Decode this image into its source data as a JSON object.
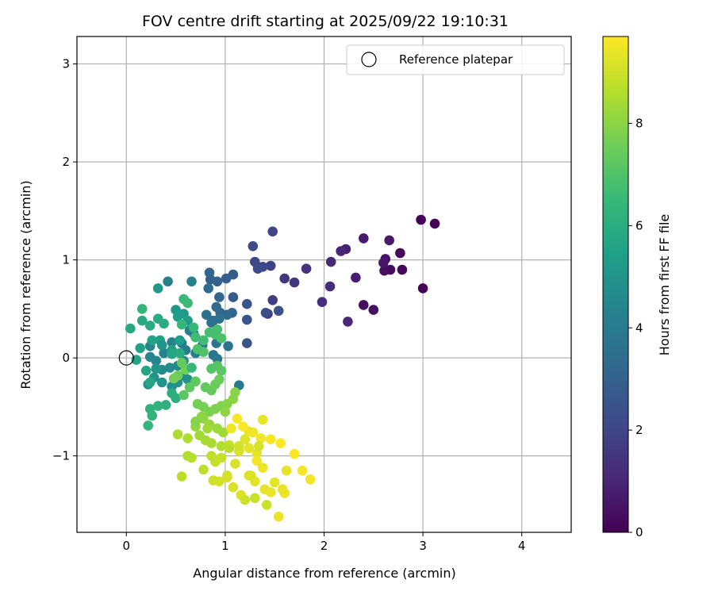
{
  "chart_data": {
    "type": "scatter",
    "title": "FOV centre drift starting at 2025/09/22 19:10:31",
    "xlabel": "Angular distance from reference (arcmin)",
    "ylabel": "Rotation from reference (arcmin)",
    "xlim": [
      -0.5,
      4.5
    ],
    "ylim": [
      -1.78,
      3.28
    ],
    "xticks": [
      0,
      1,
      2,
      3,
      4
    ],
    "yticks": [
      -1,
      0,
      1,
      2,
      3
    ],
    "xtick_labels": [
      "0",
      "1",
      "2",
      "3",
      "4"
    ],
    "ytick_labels": [
      "−1",
      "0",
      "1",
      "2",
      "3"
    ],
    "grid": true,
    "legend": {
      "position": "top-right",
      "entries": [
        {
          "label": "Reference platepar",
          "marker": "open-circle"
        }
      ]
    },
    "reference_point": {
      "x": 0,
      "y": 0
    },
    "colorbar": {
      "label": "Hours from first FF file",
      "colormap": "viridis",
      "range": [
        0,
        9.7
      ],
      "ticks": [
        0,
        2,
        4,
        6,
        8
      ],
      "tick_labels": [
        "0",
        "2",
        "4",
        "6",
        "8"
      ]
    },
    "points_format": [
      "x",
      "y",
      "hours"
    ],
    "points": [
      [
        2.98,
        1.41,
        0.05
      ],
      [
        3.12,
        1.37,
        0.1
      ],
      [
        3.0,
        0.71,
        0.15
      ],
      [
        2.79,
        0.9,
        0.2
      ],
      [
        2.77,
        1.07,
        0.25
      ],
      [
        2.67,
        0.9,
        0.3
      ],
      [
        2.61,
        0.89,
        0.35
      ],
      [
        2.4,
        0.54,
        0.4
      ],
      [
        2.5,
        0.49,
        0.45
      ],
      [
        2.62,
        1.01,
        0.5
      ],
      [
        2.6,
        0.97,
        0.6
      ],
      [
        2.66,
        1.2,
        0.65
      ],
      [
        2.4,
        1.22,
        0.7
      ],
      [
        2.32,
        0.82,
        0.8
      ],
      [
        2.22,
        1.11,
        0.9
      ],
      [
        2.17,
        1.09,
        1.0
      ],
      [
        2.24,
        0.37,
        1.05
      ],
      [
        2.07,
        0.98,
        1.1
      ],
      [
        2.06,
        0.73,
        1.2
      ],
      [
        1.98,
        0.57,
        1.3
      ],
      [
        1.82,
        0.91,
        1.4
      ],
      [
        1.7,
        0.77,
        1.5
      ],
      [
        1.6,
        0.81,
        1.6
      ],
      [
        1.48,
        0.59,
        1.7
      ],
      [
        1.43,
        0.45,
        1.8
      ],
      [
        1.46,
        0.94,
        1.9
      ],
      [
        1.48,
        1.29,
        2.0
      ],
      [
        1.38,
        0.93,
        2.05
      ],
      [
        1.3,
        0.98,
        2.1
      ],
      [
        1.28,
        1.14,
        2.2
      ],
      [
        1.33,
        0.91,
        2.25
      ],
      [
        1.41,
        0.46,
        2.3
      ],
      [
        1.54,
        0.48,
        2.4
      ],
      [
        1.22,
        0.55,
        2.5
      ],
      [
        1.22,
        0.39,
        2.55
      ],
      [
        1.22,
        0.15,
        2.6
      ],
      [
        1.08,
        0.62,
        2.7
      ],
      [
        1.08,
        0.85,
        2.8
      ],
      [
        1.01,
        0.81,
        2.9
      ],
      [
        0.92,
        0.78,
        3.0
      ],
      [
        0.85,
        0.8,
        3.05
      ],
      [
        0.84,
        0.87,
        3.1
      ],
      [
        0.94,
        0.62,
        3.15
      ],
      [
        0.95,
        0.46,
        3.2
      ],
      [
        1.02,
        0.44,
        3.25
      ],
      [
        1.07,
        0.46,
        3.3
      ],
      [
        0.91,
        0.52,
        3.35
      ],
      [
        0.88,
        0.38,
        3.4
      ],
      [
        0.83,
        0.71,
        3.45
      ],
      [
        0.81,
        0.44,
        3.5
      ],
      [
        0.86,
        0.36,
        3.55
      ],
      [
        0.94,
        0.4,
        3.6
      ],
      [
        1.03,
        0.12,
        3.65
      ],
      [
        0.91,
        0.15,
        3.7
      ],
      [
        0.88,
        0.03,
        3.75
      ],
      [
        0.77,
        0.13,
        3.8
      ],
      [
        0.92,
        -0.01,
        3.85
      ],
      [
        1.14,
        -0.28,
        3.9
      ],
      [
        0.68,
        0.25,
        3.95
      ],
      [
        0.56,
        0.15,
        4.0
      ],
      [
        0.6,
        0.08,
        4.05
      ],
      [
        0.7,
        0.05,
        4.1
      ],
      [
        0.64,
        0.28,
        4.15
      ],
      [
        0.42,
        0.78,
        4.2
      ],
      [
        0.66,
        0.78,
        4.25
      ],
      [
        0.38,
        0.05,
        4.3
      ],
      [
        0.46,
        0.16,
        4.35
      ],
      [
        0.24,
        0.12,
        4.4
      ],
      [
        0.24,
        0.01,
        4.45
      ],
      [
        0.3,
        -0.03,
        4.5
      ],
      [
        0.36,
        -0.12,
        4.55
      ],
      [
        0.44,
        -0.1,
        4.6
      ],
      [
        0.52,
        -0.08,
        4.65
      ],
      [
        0.58,
        -0.03,
        4.7
      ],
      [
        0.58,
        -0.18,
        4.75
      ],
      [
        0.62,
        -0.22,
        4.8
      ],
      [
        0.52,
        -0.25,
        4.85
      ],
      [
        0.46,
        -0.29,
        4.9
      ],
      [
        0.36,
        -0.25,
        4.95
      ],
      [
        0.28,
        -0.2,
        5.0
      ],
      [
        0.22,
        -0.27,
        5.05
      ],
      [
        0.3,
        -0.11,
        5.1
      ],
      [
        0.32,
        0.71,
        5.15
      ],
      [
        0.5,
        0.49,
        5.2
      ],
      [
        0.58,
        0.45,
        5.25
      ],
      [
        0.62,
        0.38,
        5.3
      ],
      [
        0.52,
        0.42,
        5.35
      ],
      [
        0.54,
        0.18,
        5.4
      ],
      [
        0.46,
        0.08,
        5.45
      ],
      [
        0.34,
        0.18,
        5.5
      ],
      [
        0.26,
        0.18,
        5.55
      ],
      [
        0.14,
        0.1,
        5.6
      ],
      [
        0.1,
        -0.02,
        5.65
      ],
      [
        0.2,
        -0.13,
        5.7
      ],
      [
        0.24,
        -0.25,
        5.75
      ],
      [
        0.04,
        0.3,
        5.8
      ],
      [
        0.16,
        0.38,
        5.85
      ],
      [
        0.24,
        0.33,
        5.9
      ],
      [
        0.32,
        0.4,
        5.95
      ],
      [
        0.38,
        0.35,
        6.0
      ],
      [
        0.46,
        -0.36,
        6.05
      ],
      [
        0.5,
        -0.41,
        6.1
      ],
      [
        0.4,
        -0.48,
        6.15
      ],
      [
        0.32,
        -0.49,
        6.2
      ],
      [
        0.24,
        -0.52,
        6.25
      ],
      [
        0.26,
        -0.59,
        6.3
      ],
      [
        0.22,
        -0.69,
        6.35
      ],
      [
        0.16,
        0.5,
        6.4
      ],
      [
        0.56,
        0.34,
        6.45
      ],
      [
        0.68,
        0.31,
        6.5
      ],
      [
        0.58,
        0.6,
        6.55
      ],
      [
        0.62,
        0.56,
        6.6
      ],
      [
        0.7,
        0.21,
        6.65
      ],
      [
        0.78,
        0.18,
        6.7
      ],
      [
        0.84,
        0.26,
        6.75
      ],
      [
        0.9,
        0.24,
        6.8
      ],
      [
        0.92,
        0.29,
        6.85
      ],
      [
        0.96,
        0.2,
        6.9
      ],
      [
        0.72,
        0.09,
        6.95
      ],
      [
        0.78,
        0.06,
        7.0
      ],
      [
        0.86,
        -0.11,
        7.05
      ],
      [
        0.92,
        -0.08,
        7.1
      ],
      [
        0.96,
        -0.13,
        7.15
      ],
      [
        0.58,
        -0.38,
        7.2
      ],
      [
        0.64,
        -0.3,
        7.25
      ],
      [
        0.7,
        -0.24,
        7.3
      ],
      [
        0.8,
        -0.3,
        7.35
      ],
      [
        0.86,
        -0.33,
        7.4
      ],
      [
        0.9,
        -0.27,
        7.45
      ],
      [
        0.94,
        -0.22,
        7.5
      ],
      [
        0.52,
        -0.18,
        7.55
      ],
      [
        0.48,
        -0.21,
        7.6
      ],
      [
        0.72,
        -0.47,
        7.65
      ],
      [
        0.78,
        -0.5,
        7.7
      ],
      [
        0.84,
        -0.55,
        7.75
      ],
      [
        0.9,
        -0.52,
        7.8
      ],
      [
        0.96,
        -0.49,
        7.85
      ],
      [
        1.02,
        -0.47,
        7.9
      ],
      [
        1.1,
        -0.35,
        7.95
      ],
      [
        1.08,
        -0.42,
        8.0
      ],
      [
        1.0,
        -0.55,
        8.05
      ],
      [
        0.7,
        -0.7,
        8.1
      ],
      [
        0.78,
        -0.62,
        8.15
      ],
      [
        0.84,
        -0.68,
        8.2
      ],
      [
        0.92,
        -0.72,
        8.25
      ],
      [
        0.98,
        -0.76,
        8.3
      ],
      [
        0.74,
        -0.79,
        8.35
      ],
      [
        0.8,
        -0.84,
        8.4
      ],
      [
        0.86,
        -0.87,
        8.45
      ],
      [
        0.52,
        -0.78,
        8.5
      ],
      [
        0.62,
        -0.82,
        8.55
      ],
      [
        0.62,
        -1.0,
        8.6
      ],
      [
        0.66,
        -1.02,
        8.65
      ],
      [
        0.56,
        -1.21,
        8.7
      ],
      [
        0.78,
        -1.14,
        8.75
      ],
      [
        0.86,
        -1.0,
        8.8
      ],
      [
        0.9,
        -1.06,
        8.85
      ],
      [
        0.96,
        -1.02,
        8.9
      ],
      [
        1.04,
        -0.89,
        8.95
      ],
      [
        0.88,
        -1.25,
        9.0
      ],
      [
        0.94,
        -1.26,
        9.05
      ],
      [
        1.02,
        -1.22,
        9.1
      ],
      [
        1.1,
        -1.08,
        9.15
      ],
      [
        1.14,
        -0.95,
        9.2
      ],
      [
        1.2,
        -0.83,
        9.25
      ],
      [
        1.24,
        -0.92,
        9.3
      ],
      [
        1.32,
        -0.97,
        9.35
      ],
      [
        1.38,
        -0.63,
        9.4
      ],
      [
        1.24,
        -0.75,
        9.45
      ],
      [
        1.28,
        -0.76,
        9.5
      ],
      [
        1.36,
        -0.82,
        9.55
      ],
      [
        1.46,
        -0.83,
        9.6
      ],
      [
        1.56,
        -0.87,
        9.65
      ],
      [
        1.7,
        -0.98,
        9.7
      ],
      [
        1.78,
        -1.15,
        9.6
      ],
      [
        1.86,
        -1.24,
        9.55
      ],
      [
        1.6,
        -1.38,
        9.5
      ],
      [
        1.54,
        -1.62,
        9.45
      ],
      [
        1.46,
        -1.37,
        9.4
      ],
      [
        1.4,
        -1.34,
        9.35
      ],
      [
        1.3,
        -1.26,
        9.3
      ],
      [
        1.24,
        -1.2,
        9.25
      ],
      [
        1.16,
        -1.4,
        9.2
      ],
      [
        1.08,
        -1.32,
        9.15
      ],
      [
        1.02,
        -1.2,
        9.1
      ],
      [
        1.2,
        -1.45,
        9.0
      ],
      [
        1.42,
        -1.5,
        8.95
      ],
      [
        1.3,
        -1.43,
        8.9
      ],
      [
        1.14,
        -0.9,
        9.05
      ],
      [
        1.06,
        -0.72,
        9.5
      ],
      [
        1.12,
        -0.62,
        9.6
      ],
      [
        1.18,
        -0.7,
        9.65
      ],
      [
        1.32,
        -1.05,
        9.55
      ],
      [
        1.38,
        -1.12,
        9.45
      ],
      [
        1.58,
        -1.34,
        9.4
      ],
      [
        1.62,
        -1.15,
        9.35
      ],
      [
        1.5,
        -1.27,
        9.3
      ],
      [
        1.26,
        -1.2,
        9.2
      ],
      [
        1.34,
        -0.9,
        9.1
      ],
      [
        1.04,
        -0.92,
        8.7
      ],
      [
        0.96,
        -0.9,
        8.6
      ],
      [
        0.82,
        -0.72,
        8.3
      ],
      [
        0.76,
        -0.6,
        8.0
      ],
      [
        0.7,
        -0.65,
        7.9
      ],
      [
        0.6,
        -0.12,
        7.6
      ],
      [
        0.56,
        -0.05,
        7.4
      ],
      [
        0.66,
        -0.1,
        6.5
      ],
      [
        0.54,
        0.05,
        5.9
      ],
      [
        0.46,
        0.04,
        5.7
      ],
      [
        0.36,
        0.13,
        5.0
      ]
    ]
  }
}
